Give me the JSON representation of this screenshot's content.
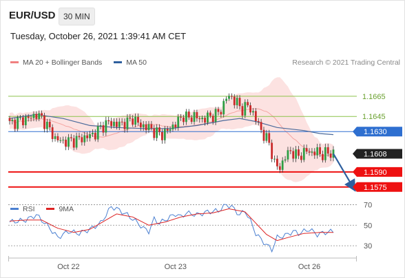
{
  "header": {
    "symbol": "EUR/USD",
    "timeframe": "30 MIN"
  },
  "timestamp": "Tuesday, October 26, 2021 1:39:41 AM CET",
  "legend": {
    "items": [
      {
        "label": "MA 20 + Bollinger Bands",
        "color": "#f08080"
      },
      {
        "label": "MA 50",
        "color": "#2e5f9e"
      }
    ],
    "credit": "Research © 2021 Trading Central"
  },
  "rsi_legend": {
    "items": [
      {
        "label": "RSI",
        "color": "#4a7fd0"
      },
      {
        "label": "9MA",
        "color": "#dd2222"
      }
    ]
  },
  "chart_data": [
    {
      "type": "candlestick",
      "symbol": "EUR/USD",
      "interval": "30 MIN",
      "x_ticks": [
        "Oct 22",
        "Oct 23",
        "Oct 26"
      ],
      "ylim": [
        1.1566,
        1.1682
      ],
      "levels": [
        {
          "value": 1.1665,
          "label": "1.1665",
          "style": "green-line"
        },
        {
          "value": 1.1645,
          "label": "1.1645",
          "style": "green-line"
        },
        {
          "value": 1.163,
          "label": "1.1630",
          "style": "blue-line"
        },
        {
          "value": 1.1608,
          "label": "1.1608",
          "style": "current-price"
        },
        {
          "value": 1.159,
          "label": "1.1590",
          "style": "red-line"
        },
        {
          "value": 1.1575,
          "label": "1.1575",
          "style": "red-line"
        }
      ],
      "forecast": {
        "from": 1.1608,
        "to": 1.1585,
        "direction": "down"
      },
      "anchors": [
        [
          0,
          1.1638
        ],
        [
          4,
          1.1641
        ],
        [
          8,
          1.1644
        ],
        [
          10,
          1.1647
        ],
        [
          12,
          1.1643
        ],
        [
          14,
          1.1636
        ],
        [
          17,
          1.1623
        ],
        [
          20,
          1.162
        ],
        [
          24,
          1.1621
        ],
        [
          28,
          1.1624
        ],
        [
          32,
          1.1628
        ],
        [
          34,
          1.1634
        ],
        [
          37,
          1.1639
        ],
        [
          40,
          1.1637
        ],
        [
          44,
          1.1639
        ],
        [
          46,
          1.1643
        ],
        [
          49,
          1.1636
        ],
        [
          52,
          1.1634
        ],
        [
          54,
          1.163
        ],
        [
          57,
          1.1627
        ],
        [
          60,
          1.1633
        ],
        [
          62,
          1.1638
        ],
        [
          64,
          1.1643
        ],
        [
          65,
          1.1646
        ],
        [
          67,
          1.1643
        ],
        [
          69,
          1.1646
        ],
        [
          71,
          1.1642
        ],
        [
          74,
          1.1644
        ],
        [
          77,
          1.1647
        ],
        [
          79,
          1.1651
        ],
        [
          81,
          1.1664
        ],
        [
          83,
          1.1664
        ],
        [
          85,
          1.1658
        ],
        [
          87,
          1.1652
        ],
        [
          89,
          1.1656
        ],
        [
          91,
          1.1648
        ],
        [
          93,
          1.1637
        ],
        [
          95,
          1.1626
        ],
        [
          97,
          1.1619
        ],
        [
          99,
          1.1598
        ],
        [
          101,
          1.1594
        ],
        [
          103,
          1.1605
        ],
        [
          105,
          1.1611
        ],
        [
          107,
          1.1606
        ],
        [
          109,
          1.1607
        ],
        [
          111,
          1.1611
        ],
        [
          113,
          1.1609
        ],
        [
          115,
          1.161
        ],
        [
          117,
          1.1607
        ],
        [
          119,
          1.1609
        ],
        [
          121,
          1.1608
        ]
      ],
      "ma50": [
        [
          0,
          1.1643
        ],
        [
          10,
          1.1647
        ],
        [
          20,
          1.1643
        ],
        [
          30,
          1.1636
        ],
        [
          40,
          1.1634
        ],
        [
          50,
          1.1633
        ],
        [
          60,
          1.1633
        ],
        [
          70,
          1.1636
        ],
        [
          80,
          1.1641
        ],
        [
          86,
          1.1643
        ],
        [
          92,
          1.164
        ],
        [
          100,
          1.1634
        ],
        [
          110,
          1.1631
        ],
        [
          116,
          1.1628
        ],
        [
          121,
          1.1627
        ]
      ]
    },
    {
      "type": "line",
      "name": "RSI",
      "ylim": [
        20,
        75
      ],
      "y_ticks": [
        70,
        50,
        30
      ],
      "series": [
        {
          "name": "RSI",
          "values": [
            [
              0,
              53
            ],
            [
              6,
              55
            ],
            [
              10,
              60
            ],
            [
              14,
              50
            ],
            [
              18,
              38
            ],
            [
              22,
              44
            ],
            [
              26,
              42
            ],
            [
              30,
              46
            ],
            [
              34,
              52
            ],
            [
              38,
              68
            ],
            [
              40,
              66
            ],
            [
              44,
              60
            ],
            [
              48,
              52
            ],
            [
              50,
              47
            ],
            [
              52,
              44
            ],
            [
              54,
              56
            ],
            [
              56,
              52
            ],
            [
              58,
              55
            ],
            [
              62,
              61
            ],
            [
              64,
              58
            ],
            [
              66,
              62
            ],
            [
              70,
              60
            ],
            [
              74,
              63
            ],
            [
              78,
              64
            ],
            [
              81,
              70
            ],
            [
              83,
              68
            ],
            [
              86,
              60
            ],
            [
              88,
              64
            ],
            [
              90,
              54
            ],
            [
              92,
              42
            ],
            [
              94,
              36
            ],
            [
              96,
              31
            ],
            [
              98,
              26
            ],
            [
              100,
              38
            ],
            [
              103,
              40
            ],
            [
              106,
              44
            ],
            [
              108,
              42
            ],
            [
              112,
              46
            ],
            [
              115,
              41
            ],
            [
              118,
              43
            ],
            [
              121,
              44
            ]
          ]
        },
        {
          "name": "9MA",
          "values": [
            [
              0,
              54
            ],
            [
              6,
              55
            ],
            [
              12,
              55
            ],
            [
              18,
              47
            ],
            [
              24,
              43
            ],
            [
              30,
              46
            ],
            [
              36,
              55
            ],
            [
              40,
              61
            ],
            [
              46,
              58
            ],
            [
              52,
              50
            ],
            [
              58,
              53
            ],
            [
              64,
              58
            ],
            [
              70,
              61
            ],
            [
              76,
              62
            ],
            [
              82,
              66
            ],
            [
              88,
              63
            ],
            [
              92,
              52
            ],
            [
              96,
              41
            ],
            [
              100,
              35
            ],
            [
              104,
              38
            ],
            [
              110,
              42
            ],
            [
              116,
              43
            ],
            [
              121,
              43
            ]
          ]
        }
      ]
    }
  ]
}
